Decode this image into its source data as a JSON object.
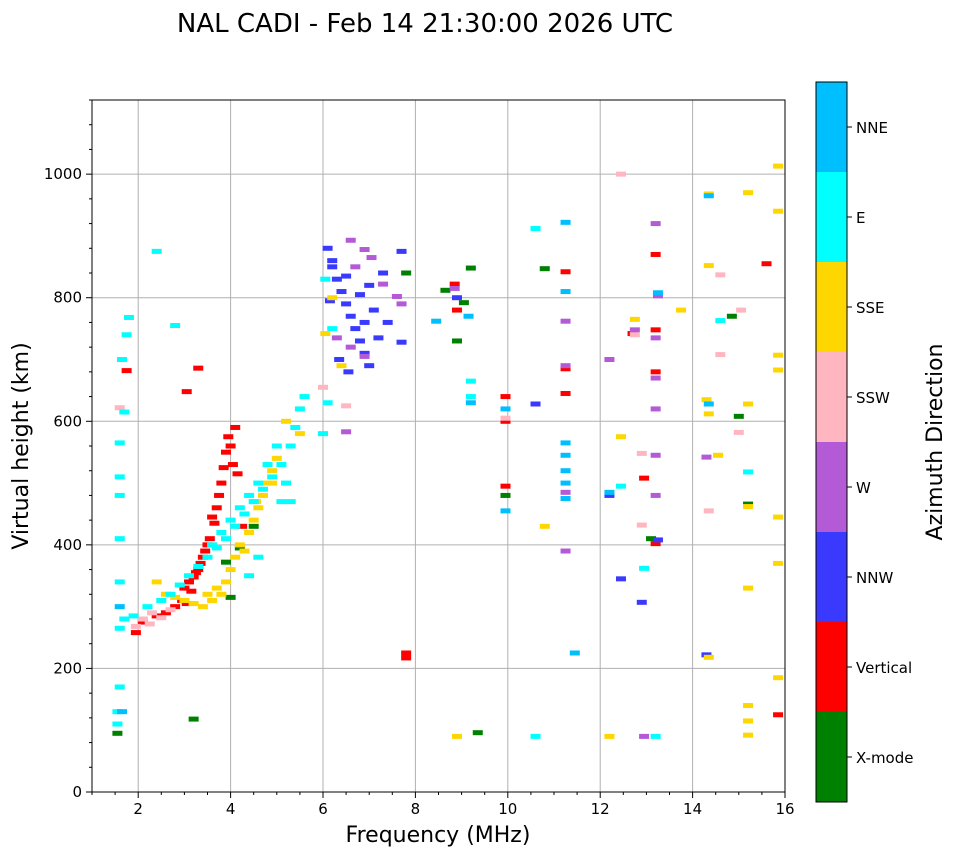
{
  "chart_data": {
    "type": "scatter",
    "title": "NAL CADI - Feb 14 21:30:00 2026 UTC",
    "xlabel": "Frequency (MHz)",
    "ylabel": "Virtual height (km)",
    "xlim": [
      1,
      16
    ],
    "ylim": [
      0,
      1120
    ],
    "xticks": [
      2,
      4,
      6,
      8,
      10,
      12,
      14,
      16
    ],
    "yticks": [
      0,
      200,
      400,
      600,
      800,
      1000
    ],
    "grid": true,
    "colorbar": {
      "label": "Azimuth Direction",
      "categories": [
        {
          "name": "X-mode",
          "color": "#008000"
        },
        {
          "name": "Vertical",
          "color": "#ff0000"
        },
        {
          "name": "NNW",
          "color": "#3a3aff"
        },
        {
          "name": "W",
          "color": "#b45ad6"
        },
        {
          "name": "SSW",
          "color": "#ffb6c1"
        },
        {
          "name": "SSE",
          "color": "#ffd700"
        },
        {
          "name": "E",
          "color": "#00ffff"
        },
        {
          "name": "NNE",
          "color": "#00bfff"
        }
      ]
    },
    "series": [
      {
        "name": "X-mode",
        "points": [
          [
            1.55,
            95
          ],
          [
            3.2,
            118
          ],
          [
            4.2,
            395
          ],
          [
            4.0,
            315
          ],
          [
            7.8,
            840
          ],
          [
            8.65,
            812
          ],
          [
            8.9,
            730
          ],
          [
            9.05,
            792
          ],
          [
            9.2,
            848
          ],
          [
            9.35,
            96
          ],
          [
            9.95,
            480
          ],
          [
            10.8,
            847
          ],
          [
            13.1,
            410
          ],
          [
            14.85,
            770
          ],
          [
            15.0,
            608
          ],
          [
            15.2,
            466
          ],
          [
            4.5,
            430
          ],
          [
            3.9,
            372
          ]
        ]
      },
      {
        "name": "Vertical",
        "points": [
          [
            1.95,
            258
          ],
          [
            2.1,
            275
          ],
          [
            2.4,
            285
          ],
          [
            2.6,
            290
          ],
          [
            2.8,
            300
          ],
          [
            2.95,
            310
          ],
          [
            3.0,
            330
          ],
          [
            3.1,
            340
          ],
          [
            3.25,
            355
          ],
          [
            3.35,
            370
          ],
          [
            3.45,
            390
          ],
          [
            3.55,
            410
          ],
          [
            3.65,
            435
          ],
          [
            3.7,
            460
          ],
          [
            3.75,
            480
          ],
          [
            3.8,
            500
          ],
          [
            3.85,
            525
          ],
          [
            3.9,
            550
          ],
          [
            3.95,
            575
          ],
          [
            4.1,
            590
          ],
          [
            4.0,
            560
          ],
          [
            4.05,
            530
          ],
          [
            3.6,
            445
          ],
          [
            3.5,
            400
          ],
          [
            3.4,
            380
          ],
          [
            3.3,
            360
          ],
          [
            3.2,
            348
          ],
          [
            3.15,
            325
          ],
          [
            3.05,
            305
          ],
          [
            4.15,
            515
          ],
          [
            4.25,
            430
          ],
          [
            1.75,
            682
          ],
          [
            3.05,
            648
          ],
          [
            3.3,
            686
          ],
          [
            7.8,
            225
          ],
          [
            7.8,
            217
          ],
          [
            8.85,
            822
          ],
          [
            8.9,
            780
          ],
          [
            9.95,
            640
          ],
          [
            9.95,
            600
          ],
          [
            9.95,
            495
          ],
          [
            11.25,
            842
          ],
          [
            11.25,
            685
          ],
          [
            11.25,
            645
          ],
          [
            12.7,
            742
          ],
          [
            12.95,
            508
          ],
          [
            13.2,
            870
          ],
          [
            13.2,
            748
          ],
          [
            13.2,
            680
          ],
          [
            13.2,
            402
          ],
          [
            15.6,
            855
          ],
          [
            15.85,
            125
          ]
        ]
      },
      {
        "name": "NNW",
        "points": [
          [
            6.1,
            880
          ],
          [
            6.2,
            850
          ],
          [
            6.3,
            830
          ],
          [
            6.4,
            810
          ],
          [
            6.5,
            790
          ],
          [
            6.6,
            770
          ],
          [
            6.7,
            750
          ],
          [
            6.8,
            730
          ],
          [
            6.9,
            710
          ],
          [
            7.0,
            690
          ],
          [
            6.2,
            860
          ],
          [
            6.5,
            835
          ],
          [
            6.8,
            805
          ],
          [
            7.1,
            780
          ],
          [
            7.4,
            760
          ],
          [
            7.7,
            728
          ],
          [
            6.35,
            700
          ],
          [
            6.55,
            680
          ],
          [
            7.3,
            840
          ],
          [
            7.7,
            875
          ],
          [
            7.0,
            820
          ],
          [
            6.15,
            795
          ],
          [
            6.9,
            760
          ],
          [
            7.2,
            735
          ],
          [
            8.9,
            800
          ],
          [
            10.6,
            628
          ],
          [
            12.2,
            480
          ],
          [
            12.45,
            345
          ],
          [
            12.9,
            307
          ],
          [
            13.25,
            408
          ],
          [
            14.3,
            222
          ]
        ]
      },
      {
        "name": "W",
        "points": [
          [
            6.6,
            893
          ],
          [
            6.9,
            878
          ],
          [
            7.05,
            865
          ],
          [
            6.3,
            735
          ],
          [
            6.6,
            720
          ],
          [
            6.9,
            705
          ],
          [
            6.7,
            850
          ],
          [
            7.3,
            822
          ],
          [
            7.6,
            802
          ],
          [
            7.7,
            790
          ],
          [
            6.5,
            583
          ],
          [
            8.85,
            815
          ],
          [
            11.25,
            762
          ],
          [
            11.25,
            690
          ],
          [
            11.25,
            485
          ],
          [
            11.25,
            390
          ],
          [
            12.2,
            700
          ],
          [
            12.75,
            748
          ],
          [
            13.2,
            920
          ],
          [
            13.25,
            803
          ],
          [
            13.2,
            735
          ],
          [
            13.2,
            670
          ],
          [
            13.2,
            620
          ],
          [
            13.2,
            545
          ],
          [
            13.2,
            480
          ],
          [
            12.95,
            90
          ],
          [
            14.3,
            542
          ]
        ]
      },
      {
        "name": "SSW",
        "points": [
          [
            1.95,
            268
          ],
          [
            2.1,
            280
          ],
          [
            2.3,
            290
          ],
          [
            2.5,
            282
          ],
          [
            2.7,
            295
          ],
          [
            2.25,
            272
          ],
          [
            1.6,
            622
          ],
          [
            6.0,
            655
          ],
          [
            6.5,
            625
          ],
          [
            9.95,
            605
          ],
          [
            12.45,
            1000
          ],
          [
            12.9,
            432
          ],
          [
            12.75,
            740
          ],
          [
            14.6,
            837
          ],
          [
            14.6,
            708
          ],
          [
            14.35,
            455
          ],
          [
            15.05,
            780
          ],
          [
            15.0,
            582
          ],
          [
            12.9,
            548
          ]
        ]
      },
      {
        "name": "SSE",
        "points": [
          [
            2.4,
            340
          ],
          [
            2.6,
            320
          ],
          [
            2.8,
            315
          ],
          [
            3.0,
            310
          ],
          [
            3.2,
            305
          ],
          [
            3.4,
            300
          ],
          [
            3.6,
            310
          ],
          [
            3.8,
            320
          ],
          [
            3.9,
            340
          ],
          [
            4.0,
            360
          ],
          [
            4.1,
            380
          ],
          [
            4.2,
            400
          ],
          [
            4.4,
            420
          ],
          [
            4.5,
            440
          ],
          [
            4.6,
            460
          ],
          [
            4.7,
            480
          ],
          [
            4.8,
            500
          ],
          [
            4.9,
            520
          ],
          [
            5.0,
            540
          ],
          [
            3.5,
            320
          ],
          [
            3.7,
            330
          ],
          [
            4.3,
            390
          ],
          [
            4.55,
            470
          ],
          [
            4.9,
            500
          ],
          [
            5.5,
            580
          ],
          [
            5.2,
            600
          ],
          [
            6.05,
            742
          ],
          [
            6.2,
            800
          ],
          [
            6.4,
            690
          ],
          [
            8.9,
            90
          ],
          [
            10.8,
            430
          ],
          [
            12.2,
            90
          ],
          [
            12.45,
            575
          ],
          [
            12.75,
            765
          ],
          [
            13.75,
            780
          ],
          [
            14.35,
            968
          ],
          [
            14.3,
            635
          ],
          [
            14.35,
            612
          ],
          [
            14.35,
            218
          ],
          [
            14.35,
            852
          ],
          [
            14.55,
            545
          ],
          [
            15.2,
            970
          ],
          [
            15.2,
            628
          ],
          [
            15.2,
            462
          ],
          [
            15.2,
            330
          ],
          [
            15.2,
            140
          ],
          [
            15.2,
            115
          ],
          [
            15.2,
            92
          ],
          [
            15.85,
            1013
          ],
          [
            15.85,
            940
          ],
          [
            15.85,
            707
          ],
          [
            15.85,
            683
          ],
          [
            15.85,
            445
          ],
          [
            15.85,
            370
          ],
          [
            15.85,
            185
          ]
        ]
      },
      {
        "name": "E",
        "points": [
          [
            1.6,
            265
          ],
          [
            1.7,
            280
          ],
          [
            1.9,
            285
          ],
          [
            2.2,
            300
          ],
          [
            2.5,
            310
          ],
          [
            2.7,
            320
          ],
          [
            2.9,
            335
          ],
          [
            3.1,
            350
          ],
          [
            3.3,
            365
          ],
          [
            3.5,
            380
          ],
          [
            3.7,
            395
          ],
          [
            3.9,
            410
          ],
          [
            4.1,
            430
          ],
          [
            4.3,
            450
          ],
          [
            4.5,
            470
          ],
          [
            4.7,
            490
          ],
          [
            4.9,
            510
          ],
          [
            5.1,
            530
          ],
          [
            5.3,
            560
          ],
          [
            5.4,
            590
          ],
          [
            5.5,
            620
          ],
          [
            5.6,
            640
          ],
          [
            5.0,
            560
          ],
          [
            4.8,
            530
          ],
          [
            4.6,
            500
          ],
          [
            4.4,
            480
          ],
          [
            4.2,
            460
          ],
          [
            4.0,
            440
          ],
          [
            3.8,
            420
          ],
          [
            3.6,
            400
          ],
          [
            5.2,
            500
          ],
          [
            5.3,
            470
          ],
          [
            5.1,
            470
          ],
          [
            4.6,
            380
          ],
          [
            4.4,
            350
          ],
          [
            1.55,
            130
          ],
          [
            1.55,
            110
          ],
          [
            1.6,
            170
          ],
          [
            1.6,
            340
          ],
          [
            1.6,
            410
          ],
          [
            1.6,
            480
          ],
          [
            1.6,
            510
          ],
          [
            1.6,
            565
          ],
          [
            1.65,
            700
          ],
          [
            1.7,
            615
          ],
          [
            1.75,
            740
          ],
          [
            1.8,
            768
          ],
          [
            2.8,
            755
          ],
          [
            2.4,
            875
          ],
          [
            6.0,
            580
          ],
          [
            6.1,
            630
          ],
          [
            6.2,
            750
          ],
          [
            6.05,
            830
          ],
          [
            9.2,
            665
          ],
          [
            9.2,
            640
          ],
          [
            10.6,
            912
          ],
          [
            10.6,
            90
          ],
          [
            12.45,
            495
          ],
          [
            12.95,
            362
          ],
          [
            14.6,
            763
          ],
          [
            15.2,
            518
          ],
          [
            13.2,
            90
          ]
        ]
      },
      {
        "name": "NNE",
        "points": [
          [
            1.6,
            300
          ],
          [
            1.65,
            130
          ],
          [
            8.45,
            762
          ],
          [
            9.15,
            770
          ],
          [
            9.2,
            630
          ],
          [
            9.95,
            455
          ],
          [
            11.25,
            922
          ],
          [
            11.25,
            810
          ],
          [
            11.25,
            565
          ],
          [
            11.25,
            545
          ],
          [
            11.25,
            520
          ],
          [
            11.25,
            500
          ],
          [
            11.25,
            475
          ],
          [
            11.45,
            225
          ],
          [
            12.2,
            485
          ],
          [
            14.35,
            965
          ],
          [
            14.35,
            628
          ],
          [
            13.25,
            808
          ],
          [
            9.95,
            620
          ]
        ]
      }
    ]
  }
}
